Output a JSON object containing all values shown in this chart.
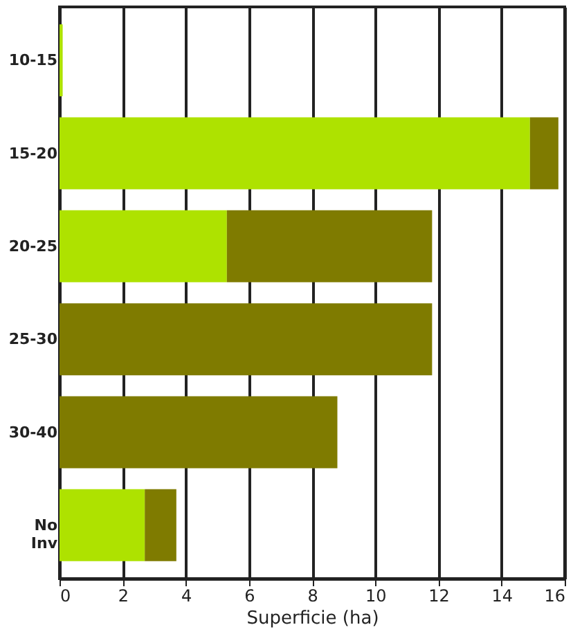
{
  "chart_data": {
    "type": "bar",
    "orientation": "horizontal",
    "stacked": true,
    "xlabel": "Superficie (ha)",
    "categories": [
      "10-15",
      "15-20",
      "20-25",
      "25-30",
      "30-40",
      "No Inv"
    ],
    "series": [
      {
        "color": "#aee200",
        "values": [
          0.1,
          14.9,
          5.3,
          0,
          0,
          2.7
        ]
      },
      {
        "color": "#7f7b00",
        "values": [
          0,
          0.9,
          6.5,
          11.8,
          8.8,
          1.0
        ]
      }
    ],
    "xlim": [
      0,
      16
    ],
    "xticks": [
      0,
      2,
      4,
      6,
      8,
      10,
      12,
      14,
      16
    ],
    "grid": "x"
  }
}
